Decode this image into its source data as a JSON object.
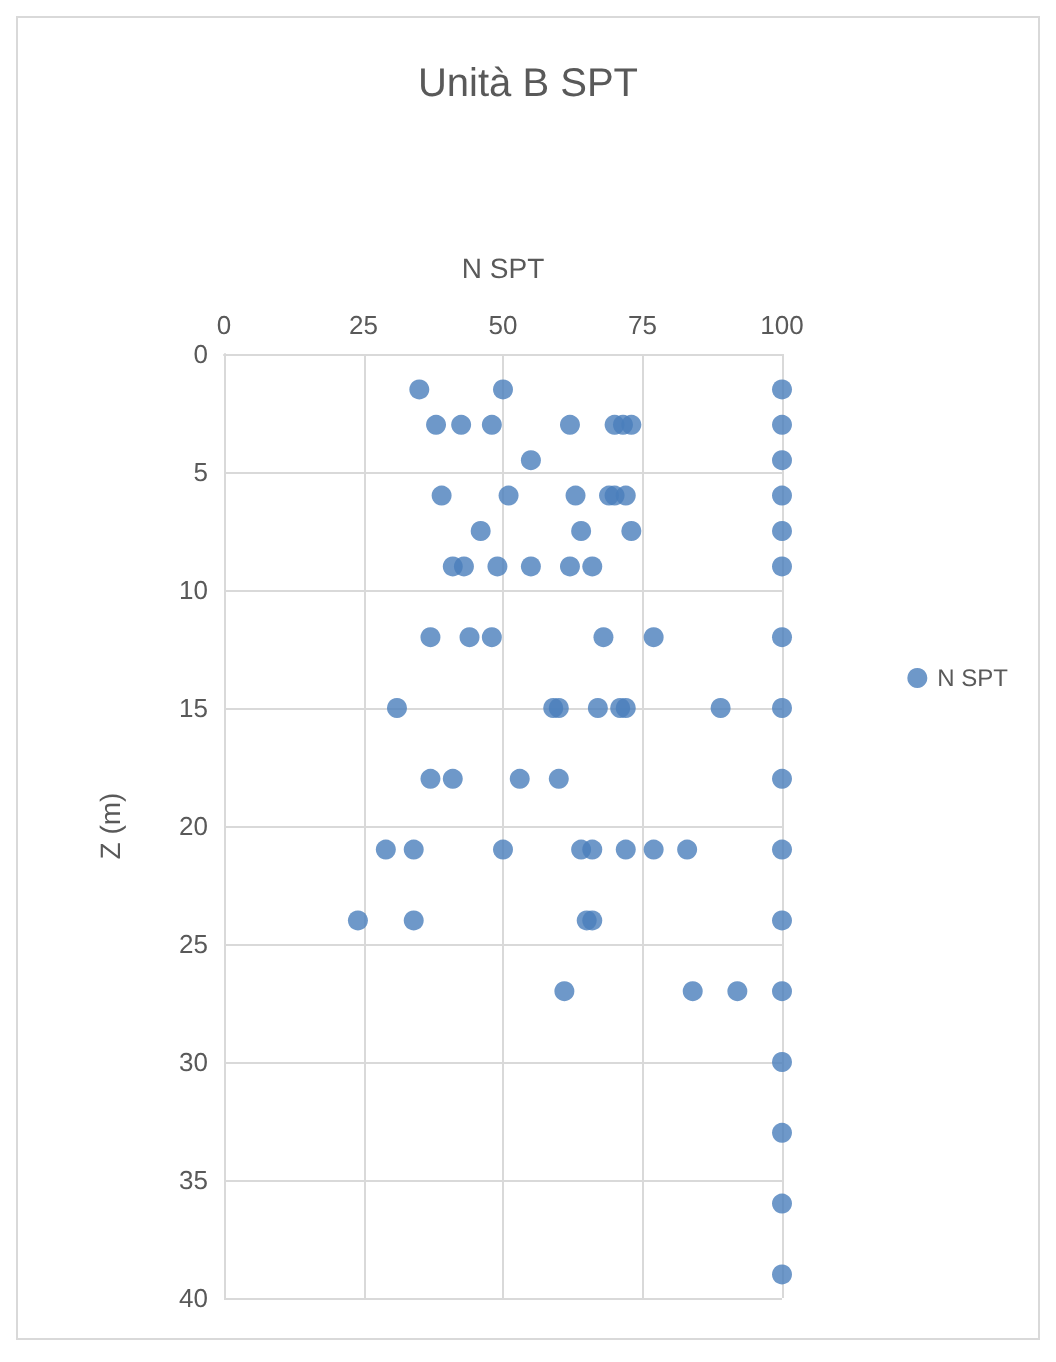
{
  "chart_data": {
    "type": "scatter",
    "title": "Unità B SPT",
    "xlabel": "N SPT",
    "ylabel": "Z (m)",
    "xlim": [
      0,
      100
    ],
    "xticks": [
      0,
      25,
      50,
      75,
      100
    ],
    "ylim": [
      40,
      0
    ],
    "yticks": [
      0,
      5,
      10,
      15,
      20,
      25,
      30,
      35,
      40
    ],
    "grid": true,
    "legend": "right",
    "marker": "circle",
    "series": [
      {
        "name": "N SPT",
        "color": "#4a7ebb",
        "x": [
          35,
          50,
          100,
          38,
          42.5,
          48,
          62,
          70,
          71.5,
          73,
          100,
          55,
          100,
          39,
          51,
          63,
          69,
          70,
          72,
          100,
          46,
          64,
          73,
          100,
          41,
          43,
          49,
          55,
          62,
          66,
          100,
          37,
          44,
          48,
          68,
          77,
          100,
          31,
          59,
          60,
          67,
          71,
          72,
          89,
          100,
          37,
          41,
          53,
          60,
          100,
          29,
          34,
          50,
          64,
          66,
          72,
          77,
          83,
          100,
          24,
          34,
          65,
          66,
          100,
          61,
          84,
          92,
          100,
          100,
          100,
          100,
          100
        ],
        "values": [
          1.5,
          1.5,
          1.5,
          3,
          3,
          3,
          3,
          3,
          3,
          3,
          3,
          4.5,
          4.5,
          6,
          6,
          6,
          6,
          6,
          6,
          6,
          7.5,
          7.5,
          7.5,
          7.5,
          9,
          9,
          9,
          9,
          9,
          9,
          9,
          12,
          12,
          12,
          12,
          12,
          12,
          15,
          15,
          15,
          15,
          15,
          15,
          15,
          15,
          18,
          18,
          18,
          18,
          18,
          21,
          21,
          21,
          21,
          21,
          21,
          21,
          21,
          21,
          24,
          24,
          24,
          24,
          24,
          27,
          27,
          27,
          27,
          30,
          33,
          36,
          39
        ]
      }
    ]
  }
}
